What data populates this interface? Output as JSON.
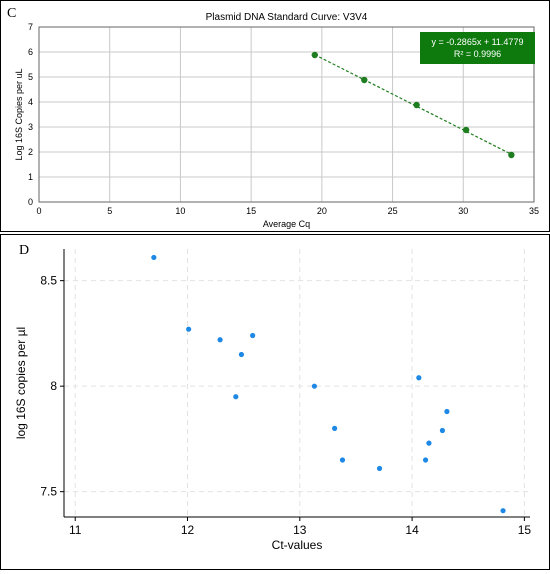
{
  "chart_data": [
    {
      "panel_label": "C",
      "type": "scatter",
      "title": "Plasmid DNA Standard Curve: V3V4",
      "xlabel": "Average Cq",
      "ylabel": "Log 16S Copies per uL",
      "xlim": [
        0,
        35
      ],
      "ylim": [
        0,
        7
      ],
      "x_ticks": [
        "0",
        "5",
        "10",
        "15",
        "20",
        "25",
        "30",
        "35"
      ],
      "y_ticks": [
        "0",
        "1",
        "2",
        "3",
        "4",
        "5",
        "6",
        "7"
      ],
      "grid": true,
      "x": [
        19.5,
        23.0,
        26.7,
        30.2,
        33.4
      ],
      "y": [
        5.88,
        4.88,
        3.88,
        2.88,
        1.88
      ],
      "trendline": {
        "slope": -0.2865,
        "intercept": 11.4779,
        "style": "dashed"
      },
      "annotation": {
        "line1": "y = -0.2865x + 11.4779",
        "line2": "R² = 0.9996",
        "placement": "top-right"
      },
      "colors": {
        "points": "#1e7d1e",
        "annotation_bg": "#0e7a0e",
        "annotation_text": "#ffffff"
      }
    },
    {
      "panel_label": "D",
      "type": "scatter",
      "xlabel": "Ct-values",
      "ylabel": "log 16S copies per µl",
      "xlim": [
        10.9,
        15.05
      ],
      "ylim": [
        7.38,
        8.65
      ],
      "x_ticks": [
        "11",
        "12",
        "13",
        "14",
        "15"
      ],
      "y_ticks": [
        "7.5",
        "8",
        "8.5"
      ],
      "grid": true,
      "x": [
        11.7,
        12.01,
        12.29,
        12.43,
        12.48,
        12.58,
        13.13,
        13.31,
        13.38,
        13.71,
        14.06,
        14.12,
        14.15,
        14.27,
        14.31,
        14.81
      ],
      "y": [
        8.61,
        8.27,
        8.22,
        7.95,
        8.15,
        8.24,
        8.0,
        7.8,
        7.65,
        7.61,
        8.04,
        7.65,
        7.73,
        7.79,
        7.88,
        7.41
      ],
      "colors": {
        "points": "#1e88e5"
      }
    }
  ]
}
